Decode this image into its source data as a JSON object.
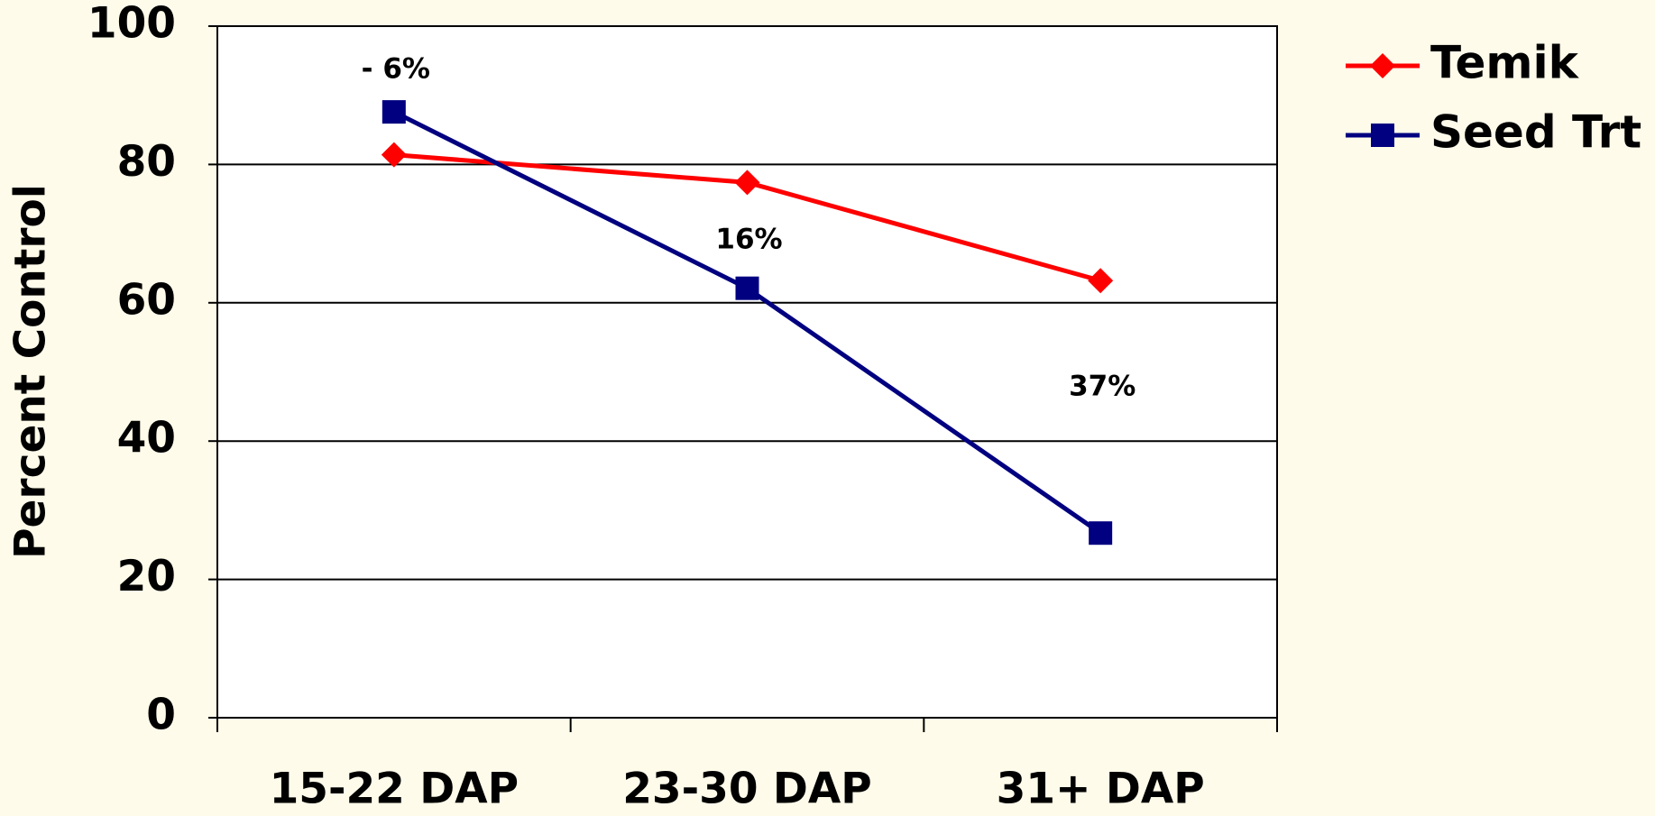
{
  "chart_data": {
    "type": "line",
    "categories": [
      "15-22 DAP",
      "23-30 DAP",
      "31+ DAP"
    ],
    "series": [
      {
        "name": "Temik",
        "color": "#ff0000",
        "marker": "diamond",
        "values": [
          81.4,
          77.4,
          63.2
        ]
      },
      {
        "name": "Seed Trt",
        "color": "#000080",
        "marker": "square",
        "values": [
          87.6,
          62.1,
          26.7
        ]
      }
    ],
    "ylabel": "Percent Control",
    "annotations": [
      "- 6%",
      "16%",
      "37%"
    ],
    "ylim": [
      0,
      100
    ],
    "yticks": [
      0,
      20,
      40,
      60,
      80,
      100
    ],
    "grid": true,
    "legend": "right"
  }
}
